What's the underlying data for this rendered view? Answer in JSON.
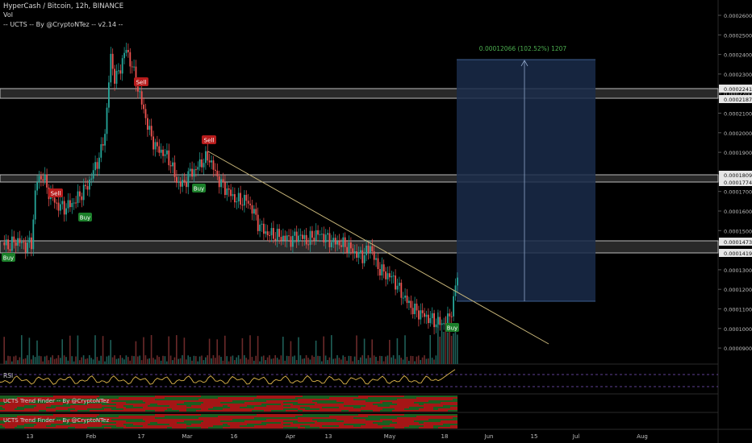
{
  "header": {
    "symbol_line": "HyperCash / Bitcoin, 12h, BINANCE",
    "vol_label": "Vol",
    "indicator_line": "-- UCTS -- By @CryptoNTez -- v2.14 --"
  },
  "price_axis": {
    "ticks": [
      "0.00026000",
      "0.00025000",
      "0.00024000",
      "0.00023000",
      "0.00022000",
      "0.00021000",
      "0.00020000",
      "0.00019000",
      "0.00018000",
      "0.00017000",
      "0.00016000",
      "0.00015000",
      "0.00014000",
      "0.00013000",
      "0.00012000",
      "0.00011000",
      "0.00010000",
      "0.00009000"
    ],
    "levels": [
      "0.00022410",
      "0.00021870",
      "0.00018090",
      "0.00017740",
      "0.00014730",
      "0.00014190"
    ]
  },
  "time_axis": {
    "ticks": [
      "13",
      "Feb",
      "17",
      "Mar",
      "16",
      "Apr",
      "13",
      "May",
      "18",
      "Jun",
      "15",
      "Jul",
      "Aug"
    ]
  },
  "measure": {
    "label": "0.00012066 (102.52%) 1207"
  },
  "signals": {
    "sell": "Sell",
    "buy": "Buy"
  },
  "panes": {
    "rsi_label": "RSI",
    "trend_finder_1": "UCTS Trend Finder -- By @CryptoNTez",
    "trend_finder_2": "UCTS Trend Finder -- By @CryptoNTez"
  },
  "colors": {
    "background": "#000000",
    "up_candle": "#26a69a",
    "down_candle": "#ef5350",
    "sell_badge": "#b71c1c",
    "buy_badge": "#1b7f2a",
    "trendline": "#c9b77a",
    "measure_fill": "#1a2b4a",
    "measure_text": "#4caf50",
    "rsi_line": "#e0b84d",
    "rsi_band": "#7e57c2"
  }
}
